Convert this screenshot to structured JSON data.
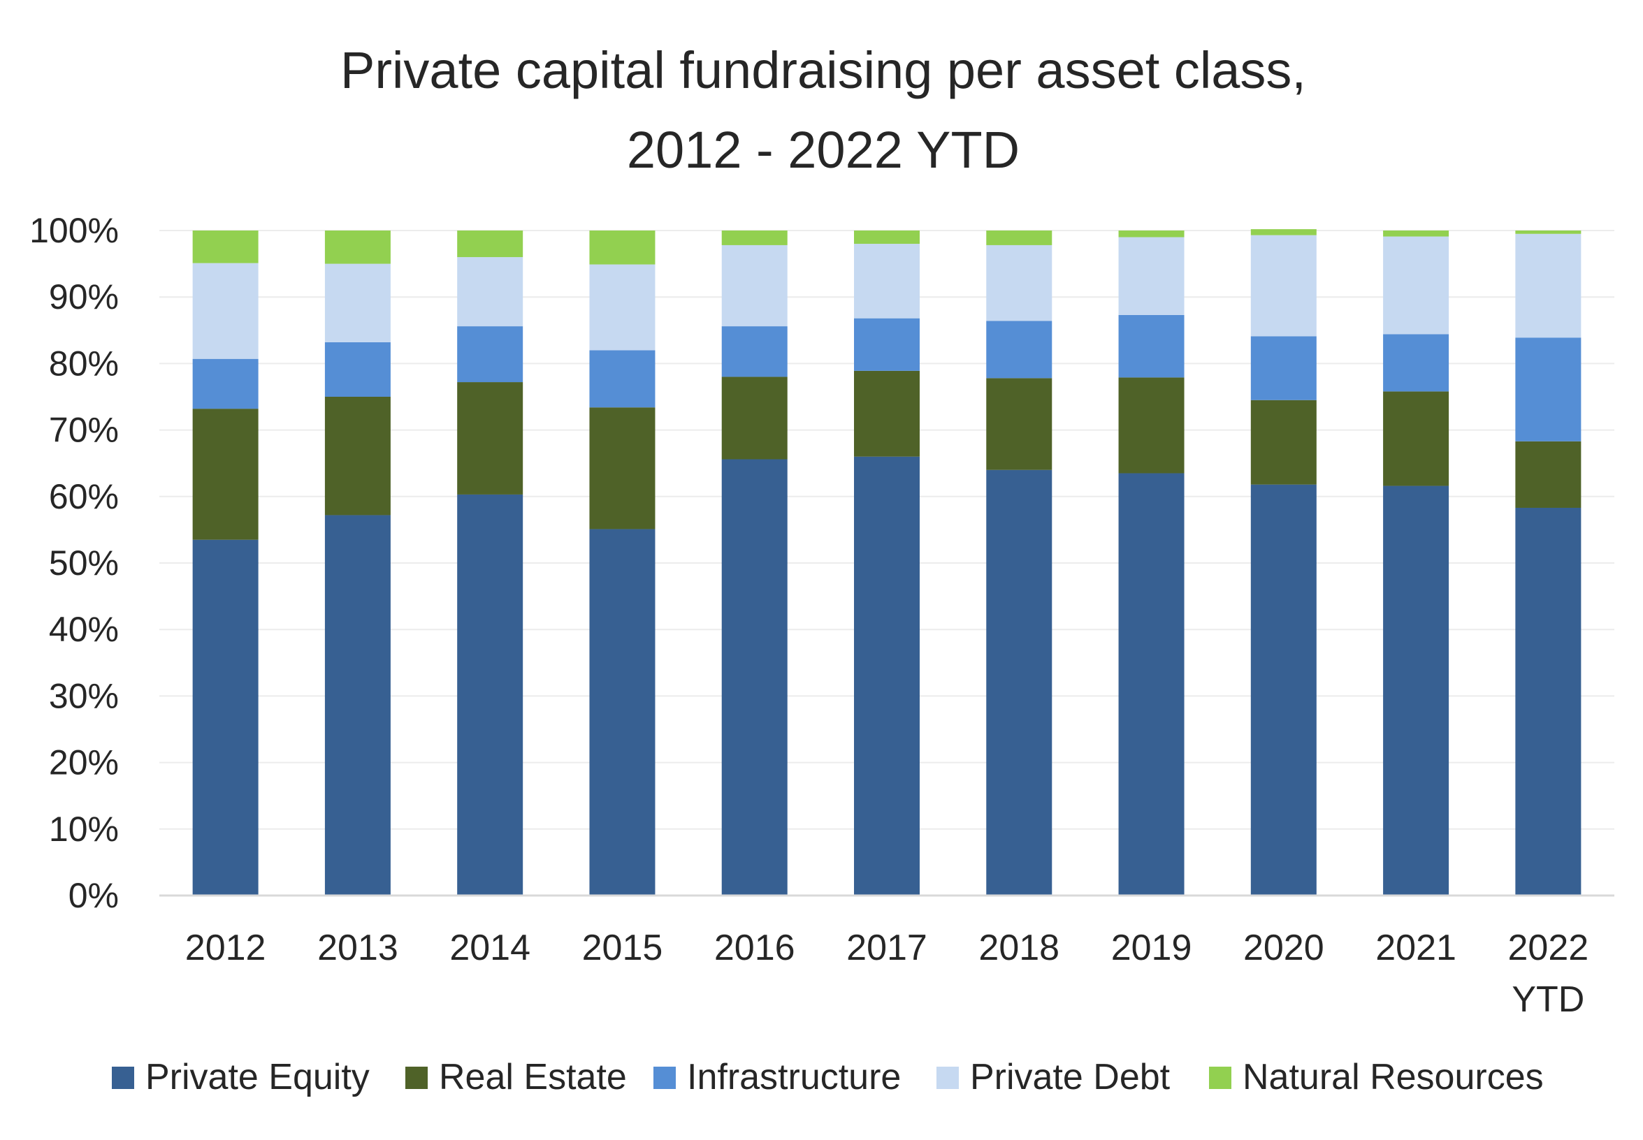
{
  "chart_data": {
    "type": "bar",
    "stacked": true,
    "percent_stacked": true,
    "title_lines": [
      "Private capital fundraising per asset class,",
      "2012 - 2022 YTD"
    ],
    "xlabel": "",
    "ylabel": "",
    "ylim": [
      0,
      100
    ],
    "y_ticks": [
      "0%",
      "10%",
      "20%",
      "30%",
      "40%",
      "50%",
      "60%",
      "70%",
      "80%",
      "90%",
      "100%"
    ],
    "categories": [
      [
        "2012"
      ],
      [
        "2013"
      ],
      [
        "2014"
      ],
      [
        "2015"
      ],
      [
        "2016"
      ],
      [
        "2017"
      ],
      [
        "2018"
      ],
      [
        "2019"
      ],
      [
        "2020"
      ],
      [
        "2021"
      ],
      [
        "2022",
        "YTD"
      ]
    ],
    "grid": true,
    "legend_position": "bottom",
    "series": [
      {
        "name": "Private Equity",
        "color": "#376092",
        "values": [
          53.5,
          57.2,
          60.3,
          55.1,
          65.6,
          66.0,
          64.0,
          63.5,
          61.8,
          61.6,
          58.3
        ]
      },
      {
        "name": "Real Estate",
        "color": "#4F6228",
        "values": [
          19.7,
          17.8,
          16.9,
          18.3,
          12.4,
          12.9,
          13.8,
          14.4,
          12.7,
          14.2,
          10.0
        ]
      },
      {
        "name": "Infrastructure",
        "color": "#558ED5",
        "values": [
          7.5,
          8.2,
          8.4,
          8.6,
          7.6,
          7.9,
          8.6,
          9.4,
          9.6,
          8.6,
          15.6
        ]
      },
      {
        "name": "Private Debt",
        "color": "#C6D9F1",
        "values": [
          14.4,
          11.8,
          10.4,
          12.9,
          12.2,
          11.2,
          11.4,
          11.7,
          15.2,
          14.7,
          15.6
        ]
      },
      {
        "name": "Natural Resources",
        "color": "#92D050",
        "values": [
          4.9,
          5.0,
          4.0,
          5.1,
          2.2,
          2.0,
          2.2,
          1.0,
          0.9,
          0.9,
          0.5
        ]
      }
    ]
  }
}
